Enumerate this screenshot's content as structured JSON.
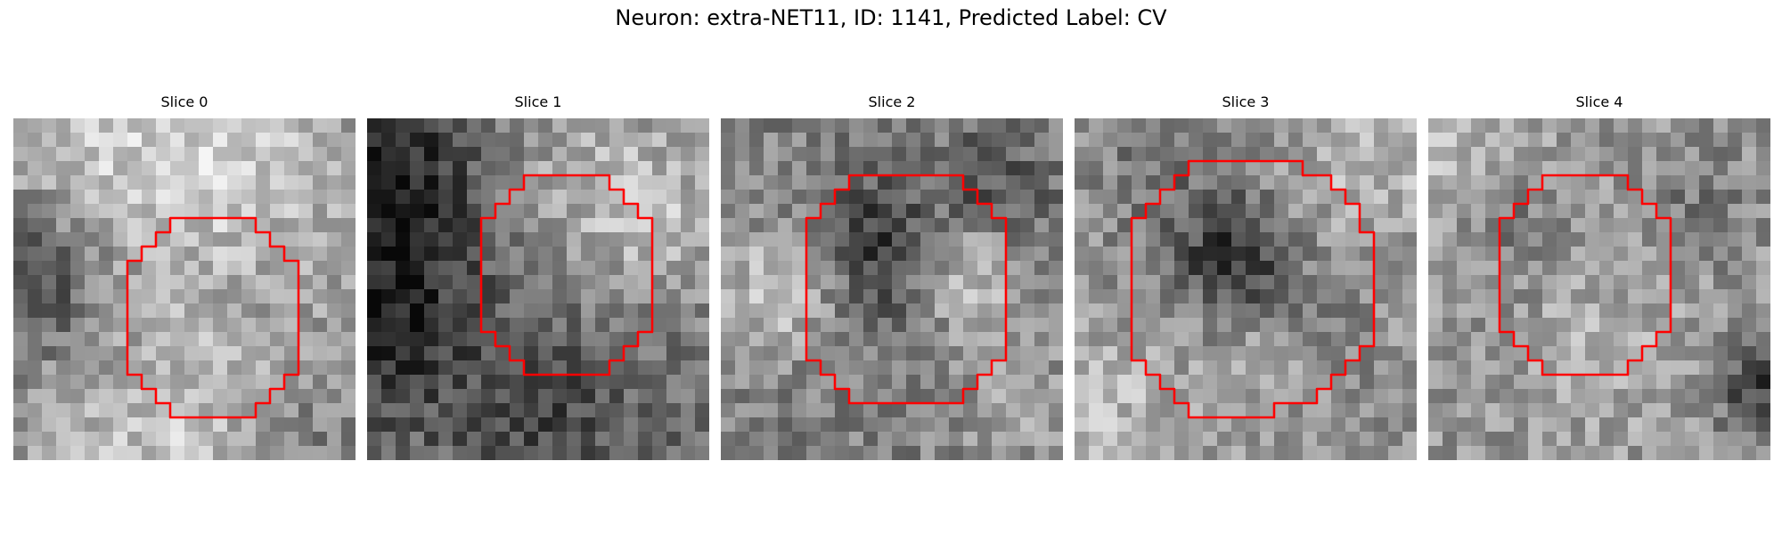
{
  "figure": {
    "title": "Neuron: extra-NET11, ID: 1141, Predicted Label: CV"
  },
  "image": {
    "grid_size": 24,
    "contour_color": "#ff0000"
  },
  "panels": [
    {
      "title": "Slice 0",
      "seed": 11,
      "base": 150,
      "dark_spots": [
        [
          1,
          11,
          4,
          90
        ],
        [
          20,
          23,
          4,
          40
        ],
        [
          0,
          5,
          5,
          20
        ]
      ],
      "light_spots": [
        [
          4,
          3,
          6,
          60
        ],
        [
          16,
          3,
          5,
          50
        ],
        [
          12,
          22,
          6,
          50
        ]
      ],
      "contour": [
        [
          11,
          7
        ],
        [
          17,
          7
        ],
        [
          17,
          8
        ],
        [
          18,
          8
        ],
        [
          18,
          9
        ],
        [
          19,
          9
        ],
        [
          19,
          10
        ],
        [
          20,
          10
        ],
        [
          20,
          18
        ],
        [
          19,
          18
        ],
        [
          19,
          19
        ],
        [
          18,
          19
        ],
        [
          18,
          20
        ],
        [
          17,
          20
        ],
        [
          17,
          21
        ],
        [
          11,
          21
        ],
        [
          11,
          20
        ],
        [
          10,
          20
        ],
        [
          10,
          19
        ],
        [
          9,
          19
        ],
        [
          9,
          18
        ],
        [
          8,
          18
        ],
        [
          8,
          10
        ],
        [
          9,
          10
        ],
        [
          9,
          9
        ],
        [
          10,
          9
        ],
        [
          10,
          8
        ],
        [
          11,
          8
        ]
      ]
    },
    {
      "title": "Slice 1",
      "seed": 23,
      "base": 115,
      "dark_spots": [
        [
          2,
          4,
          5,
          80
        ],
        [
          1,
          14,
          5,
          70
        ],
        [
          13,
          21,
          5,
          40
        ]
      ],
      "light_spots": [
        [
          16,
          4,
          6,
          60
        ],
        [
          22,
          8,
          4,
          40
        ]
      ],
      "contour": [
        [
          11,
          4
        ],
        [
          17,
          4
        ],
        [
          17,
          5
        ],
        [
          18,
          5
        ],
        [
          18,
          6
        ],
        [
          19,
          6
        ],
        [
          19,
          7
        ],
        [
          20,
          7
        ],
        [
          20,
          15
        ],
        [
          19,
          15
        ],
        [
          19,
          16
        ],
        [
          18,
          16
        ],
        [
          18,
          17
        ],
        [
          17,
          17
        ],
        [
          17,
          18
        ],
        [
          11,
          18
        ],
        [
          11,
          17
        ],
        [
          10,
          17
        ],
        [
          10,
          16
        ],
        [
          9,
          16
        ],
        [
          9,
          15
        ],
        [
          8,
          15
        ],
        [
          8,
          7
        ],
        [
          9,
          7
        ],
        [
          9,
          6
        ],
        [
          10,
          6
        ],
        [
          10,
          5
        ],
        [
          11,
          5
        ]
      ]
    },
    {
      "title": "Slice 2",
      "seed": 37,
      "base": 130,
      "dark_spots": [
        [
          11,
          8,
          3,
          60
        ],
        [
          19,
          5,
          3,
          50
        ],
        [
          12,
          12,
          3,
          40
        ]
      ],
      "light_spots": [
        [
          4,
          12,
          3,
          70
        ],
        [
          17,
          11,
          3,
          70
        ],
        [
          21,
          20,
          3,
          40
        ]
      ],
      "contour": [
        [
          9,
          4
        ],
        [
          17,
          4
        ],
        [
          17,
          5
        ],
        [
          18,
          5
        ],
        [
          18,
          6
        ],
        [
          19,
          6
        ],
        [
          19,
          7
        ],
        [
          20,
          7
        ],
        [
          20,
          17
        ],
        [
          19,
          17
        ],
        [
          19,
          18
        ],
        [
          18,
          18
        ],
        [
          18,
          19
        ],
        [
          17,
          19
        ],
        [
          17,
          20
        ],
        [
          9,
          20
        ],
        [
          9,
          19
        ],
        [
          8,
          19
        ],
        [
          8,
          18
        ],
        [
          7,
          18
        ],
        [
          7,
          17
        ],
        [
          6,
          17
        ],
        [
          6,
          7
        ],
        [
          7,
          7
        ],
        [
          7,
          6
        ],
        [
          8,
          6
        ],
        [
          8,
          5
        ],
        [
          9,
          5
        ]
      ]
    },
    {
      "title": "Slice 3",
      "seed": 51,
      "base": 145,
      "dark_spots": [
        [
          11,
          10,
          3,
          90
        ],
        [
          8,
          2,
          5,
          30
        ],
        [
          17,
          13,
          3,
          20
        ]
      ],
      "light_spots": [
        [
          2,
          21,
          5,
          40
        ],
        [
          20,
          3,
          5,
          40
        ],
        [
          13,
          16,
          3,
          20
        ]
      ],
      "contour": [
        [
          8,
          3
        ],
        [
          16,
          3
        ],
        [
          16,
          4
        ],
        [
          18,
          4
        ],
        [
          18,
          5
        ],
        [
          19,
          5
        ],
        [
          19,
          6
        ],
        [
          20,
          6
        ],
        [
          20,
          8
        ],
        [
          21,
          8
        ],
        [
          21,
          16
        ],
        [
          20,
          16
        ],
        [
          20,
          17
        ],
        [
          19,
          17
        ],
        [
          19,
          18
        ],
        [
          18,
          18
        ],
        [
          18,
          19
        ],
        [
          17,
          19
        ],
        [
          17,
          20
        ],
        [
          14,
          20
        ],
        [
          14,
          21
        ],
        [
          8,
          21
        ],
        [
          8,
          20
        ],
        [
          7,
          20
        ],
        [
          7,
          19
        ],
        [
          6,
          19
        ],
        [
          6,
          18
        ],
        [
          5,
          18
        ],
        [
          5,
          17
        ],
        [
          4,
          17
        ],
        [
          4,
          7
        ],
        [
          5,
          7
        ],
        [
          5,
          6
        ],
        [
          6,
          6
        ],
        [
          6,
          5
        ],
        [
          7,
          5
        ],
        [
          7,
          4
        ],
        [
          8,
          4
        ]
      ]
    },
    {
      "title": "Slice 4",
      "seed": 67,
      "base": 150,
      "dark_spots": [
        [
          23,
          19,
          2,
          90
        ],
        [
          6,
          7,
          3,
          40
        ],
        [
          19,
          6,
          3,
          30
        ]
      ],
      "light_spots": [
        [
          2,
          2,
          5,
          40
        ],
        [
          13,
          16,
          4,
          30
        ]
      ],
      "contour": [
        [
          8,
          4
        ],
        [
          14,
          4
        ],
        [
          14,
          5
        ],
        [
          15,
          5
        ],
        [
          15,
          6
        ],
        [
          16,
          6
        ],
        [
          16,
          7
        ],
        [
          17,
          7
        ],
        [
          17,
          15
        ],
        [
          16,
          15
        ],
        [
          16,
          16
        ],
        [
          15,
          16
        ],
        [
          15,
          17
        ],
        [
          14,
          17
        ],
        [
          14,
          18
        ],
        [
          8,
          18
        ],
        [
          8,
          17
        ],
        [
          7,
          17
        ],
        [
          7,
          16
        ],
        [
          6,
          16
        ],
        [
          6,
          15
        ],
        [
          5,
          15
        ],
        [
          5,
          7
        ],
        [
          6,
          7
        ],
        [
          6,
          6
        ],
        [
          7,
          6
        ],
        [
          7,
          5
        ],
        [
          8,
          5
        ]
      ]
    }
  ]
}
